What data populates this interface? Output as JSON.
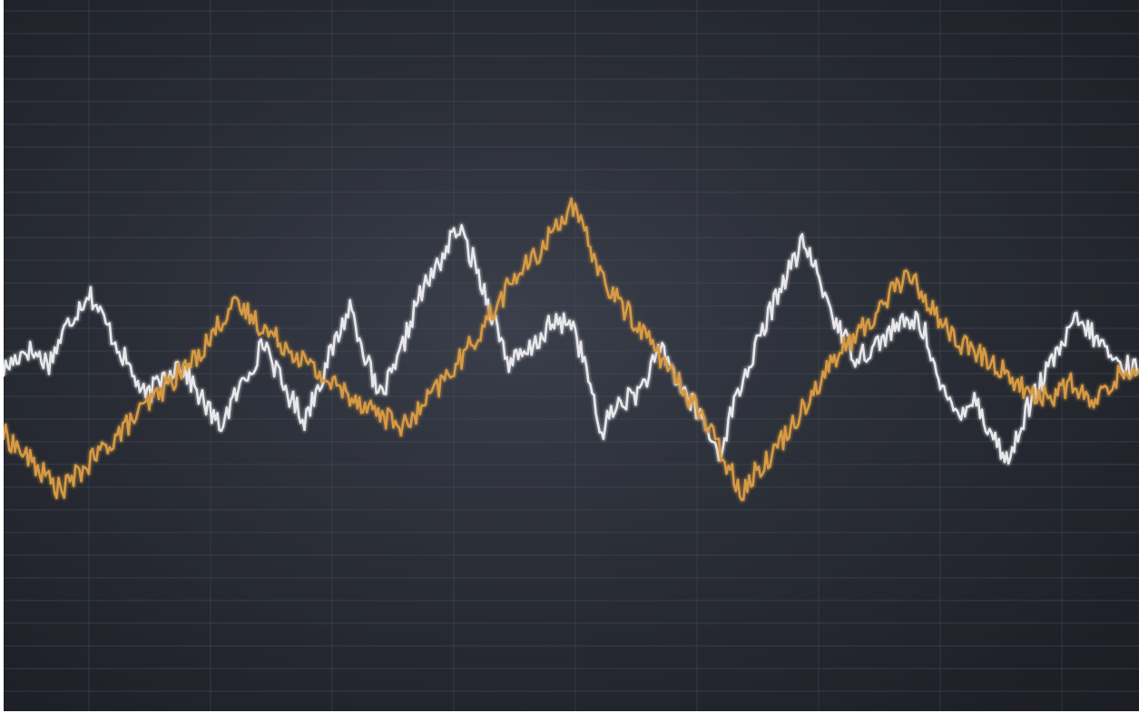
{
  "chart_data": {
    "type": "line",
    "title": "",
    "xlabel": "",
    "ylabel": "",
    "xlim": [
      0,
      100
    ],
    "ylim": [
      0,
      100
    ],
    "grid": true,
    "legend": "none",
    "background_color": "#30343e",
    "grid_color": "#4a4f5b",
    "series": [
      {
        "color": "#e8e8ec",
        "points": [
          [
            0,
            48
          ],
          [
            2,
            51
          ],
          [
            4,
            49
          ],
          [
            5.5,
            54
          ],
          [
            7.5,
            59
          ],
          [
            8.5,
            56
          ],
          [
            10.5,
            50
          ],
          [
            12.5,
            44
          ],
          [
            14,
            47
          ],
          [
            15.5,
            49
          ],
          [
            17,
            45
          ],
          [
            19,
            40
          ],
          [
            21,
            46
          ],
          [
            23,
            52
          ],
          [
            24.5,
            46
          ],
          [
            26.5,
            41
          ],
          [
            28,
            47
          ],
          [
            30.5,
            57
          ],
          [
            31.5,
            52
          ],
          [
            33,
            44
          ],
          [
            34.5,
            48
          ],
          [
            36.5,
            58
          ],
          [
            38,
            62
          ],
          [
            40,
            68
          ],
          [
            41.5,
            63
          ],
          [
            43,
            56
          ],
          [
            44.5,
            49
          ],
          [
            46,
            50
          ],
          [
            48,
            54
          ],
          [
            50,
            55
          ],
          [
            51.5,
            47
          ],
          [
            52.5,
            39
          ],
          [
            54,
            43
          ],
          [
            56,
            45
          ],
          [
            58,
            51
          ],
          [
            59.5,
            46
          ],
          [
            61.5,
            41
          ],
          [
            63,
            36
          ],
          [
            64.5,
            44
          ],
          [
            66.5,
            52
          ],
          [
            68.5,
            60
          ],
          [
            70.5,
            66
          ],
          [
            72,
            60
          ],
          [
            73.5,
            54
          ],
          [
            75,
            50
          ],
          [
            76.5,
            51
          ],
          [
            78.5,
            54
          ],
          [
            80.5,
            55
          ],
          [
            81.5,
            52
          ],
          [
            82.5,
            45
          ],
          [
            84,
            42
          ],
          [
            85.5,
            44
          ],
          [
            87,
            39
          ],
          [
            88.5,
            35
          ],
          [
            90,
            42
          ],
          [
            92,
            48
          ],
          [
            94.5,
            55
          ],
          [
            96.5,
            52
          ],
          [
            98,
            49
          ],
          [
            100,
            48
          ]
        ]
      },
      {
        "color": "#d79a44",
        "points": [
          [
            0,
            39
          ],
          [
            2.5,
            35
          ],
          [
            5,
            31
          ],
          [
            7,
            34
          ],
          [
            9.5,
            38
          ],
          [
            12,
            42
          ],
          [
            14.5,
            46
          ],
          [
            16.5,
            49
          ],
          [
            18,
            52
          ],
          [
            20,
            57
          ],
          [
            21.5,
            56
          ],
          [
            23.5,
            53
          ],
          [
            26,
            50
          ],
          [
            28,
            47
          ],
          [
            30,
            45
          ],
          [
            32,
            43
          ],
          [
            34,
            41
          ],
          [
            35.5,
            40
          ],
          [
            37,
            43
          ],
          [
            39,
            47
          ],
          [
            41,
            51
          ],
          [
            43,
            56
          ],
          [
            45,
            61
          ],
          [
            47,
            64
          ],
          [
            48.5,
            68
          ],
          [
            50,
            71
          ],
          [
            51.5,
            66
          ],
          [
            53,
            60
          ],
          [
            55,
            56
          ],
          [
            57,
            52
          ],
          [
            59,
            47
          ],
          [
            61,
            43
          ],
          [
            63,
            37
          ],
          [
            65,
            31
          ],
          [
            66.5,
            34
          ],
          [
            68.5,
            38
          ],
          [
            70.5,
            43
          ],
          [
            72.5,
            48
          ],
          [
            74.5,
            52
          ],
          [
            76.5,
            55
          ],
          [
            78.5,
            60
          ],
          [
            80,
            61
          ],
          [
            82,
            56
          ],
          [
            84,
            52
          ],
          [
            86,
            50
          ],
          [
            88,
            48
          ],
          [
            90,
            45
          ],
          [
            92,
            44
          ],
          [
            94,
            46
          ],
          [
            96,
            43
          ],
          [
            98,
            47
          ],
          [
            100,
            48
          ]
        ]
      }
    ]
  }
}
